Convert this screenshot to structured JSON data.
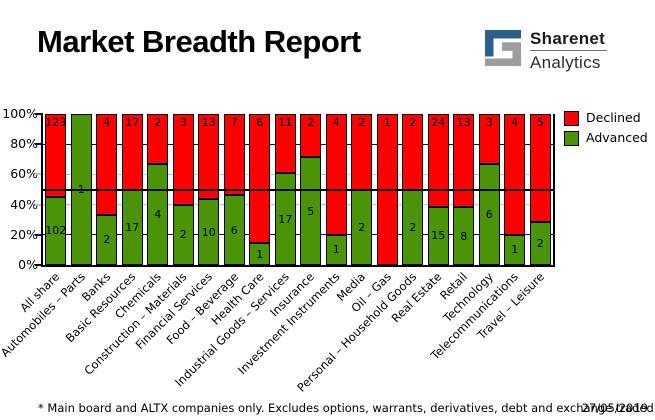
{
  "header": {
    "title": "Market Breadth Report",
    "logo": {
      "line1": "Sharenet",
      "line2": "Analytics",
      "blue": "#2d5f8c",
      "gray": "#9d9d9d"
    }
  },
  "chart_data": {
    "type": "bar",
    "stacked": true,
    "percent_stacked": true,
    "categories": [
      "All share",
      "Automobiles – Parts",
      "Banks",
      "Basic Resources",
      "Chemicals",
      "Construction – Materials",
      "Financial Services",
      "Food – Beverage",
      "Health Care",
      "Industrial Goods – Services",
      "Insurance",
      "Investment Instruments",
      "Media",
      "Oil – Gas",
      "Personal – Household Goods",
      "Real Estate",
      "Retail",
      "Technology",
      "Telecommunications",
      "Travel – Leisure"
    ],
    "series": [
      {
        "name": "Declined",
        "color": "#ff0000",
        "values": [
          123,
          0,
          4,
          17,
          2,
          3,
          13,
          7,
          6,
          11,
          2,
          4,
          2,
          1,
          2,
          24,
          13,
          3,
          4,
          5
        ]
      },
      {
        "name": "Advanced",
        "color": "#4a9408",
        "values": [
          102,
          1,
          2,
          17,
          4,
          2,
          10,
          6,
          1,
          17,
          5,
          1,
          2,
          0,
          2,
          15,
          8,
          6,
          1,
          2
        ]
      }
    ],
    "y_axis": {
      "min": 0,
      "max": 100,
      "unit": "%",
      "ticks": [
        {
          "value": 100,
          "label": "100%"
        },
        {
          "value": 80,
          "label": "80%"
        },
        {
          "value": 60,
          "label": "60%"
        },
        {
          "value": 40,
          "label": "40%"
        },
        {
          "value": 20,
          "label": "20%"
        },
        {
          "value": 0,
          "label": "0%"
        }
      ]
    },
    "gridlines": [
      {
        "value": 80,
        "color": "#000080"
      },
      {
        "value": 60,
        "color": "#c0c0c0"
      },
      {
        "value": 40,
        "color": "#c0c0c0"
      },
      {
        "value": 20,
        "color": "#000080"
      }
    ],
    "reference_line": {
      "value": 50,
      "color": "#000000"
    },
    "legend": {
      "position": "top-right",
      "entries": [
        {
          "label": "Declined",
          "color": "#ff0000"
        },
        {
          "label": "Advanced",
          "color": "#4a9408"
        }
      ]
    }
  },
  "footer": {
    "note": "* Main board and ALTX companies only. Excludes options, warrants, derivatives, debt and exchange traded funds",
    "date": "27/05/2019"
  }
}
